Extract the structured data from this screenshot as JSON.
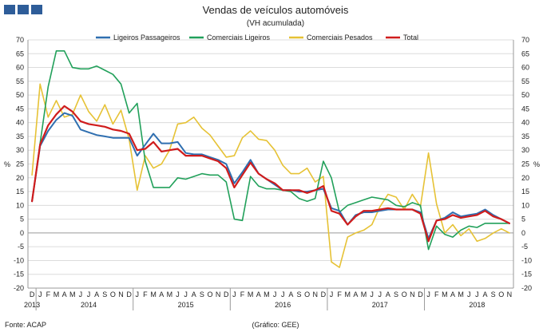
{
  "colors": {
    "brand_box": "#2e5d99",
    "series": [
      "#2f6fb0",
      "#21a05a",
      "#e6c235",
      "#d01c1c"
    ],
    "grid": "#dcdcdc",
    "axis": "#9a9a9a"
  },
  "chart_data": {
    "type": "line",
    "title": "Vendas de veículos automóveis",
    "subtitle": "(VH acumulada)",
    "ylabel_left": "%",
    "ylabel_right": "%",
    "ylim": [
      -20,
      70
    ],
    "ytick_step": 5,
    "grid": true,
    "legend_position": "top",
    "source": "Fonte: ACAP",
    "credit": "(Gráfico: GEE)",
    "month_ticks": [
      "D",
      "J",
      "F",
      "M",
      "A",
      "M",
      "J",
      "J",
      "A",
      "S",
      "O",
      "N",
      "D",
      "J",
      "F",
      "M",
      "A",
      "M",
      "J",
      "J",
      "A",
      "S",
      "O",
      "N",
      "D",
      "J",
      "F",
      "M",
      "A",
      "M",
      "J",
      "J",
      "A",
      "S",
      "O",
      "N",
      "D",
      "J",
      "F",
      "M",
      "A",
      "M",
      "J",
      "J",
      "A",
      "S",
      "O",
      "N",
      "D",
      "J",
      "F",
      "M",
      "A",
      "M",
      "J",
      "J",
      "A",
      "S",
      "O",
      "N"
    ],
    "year_labels": [
      "2013",
      "2014",
      "2015",
      "2016",
      "2017",
      "2018"
    ],
    "x_range": "Dez 2013 – Nov 2018",
    "series": [
      {
        "name": "Ligeiros Passageiros",
        "values": [
          11.5,
          31.5,
          37,
          41,
          43.5,
          42.5,
          37.5,
          36.5,
          35.5,
          35,
          34.5,
          34.5,
          34.5,
          28,
          32,
          36,
          32.5,
          32.5,
          33,
          29,
          28.5,
          28.5,
          27.5,
          26.5,
          25,
          18,
          22,
          26.5,
          21.5,
          19.5,
          17.5,
          15.5,
          15.5,
          15,
          15,
          15.5,
          16,
          9,
          8,
          3,
          6.5,
          7.5,
          7.5,
          8,
          8.5,
          8.5,
          8.5,
          8.5,
          7.5,
          -2,
          4.5,
          5.5,
          7.5,
          6,
          6.5,
          7,
          8.5,
          6.5,
          5,
          3.5
        ]
      },
      {
        "name": "Comerciais Ligeiros",
        "values": [
          11.5,
          32.5,
          53,
          66,
          66,
          60,
          59.5,
          59.5,
          60.5,
          59,
          57.5,
          54,
          43.5,
          47,
          26,
          16.5,
          16.5,
          16.5,
          20,
          19.5,
          20.5,
          21.5,
          21,
          21,
          18.5,
          5,
          4.5,
          20.5,
          17,
          16,
          16,
          15.5,
          15,
          12.5,
          11.5,
          12.5,
          26,
          20,
          7.5,
          10,
          11,
          12,
          13,
          12.5,
          12,
          10,
          9.5,
          11,
          10,
          -6,
          2.5,
          -0.5,
          -1.5,
          1,
          2.5,
          2,
          3.5,
          3.5,
          3.5,
          3.5
        ]
      },
      {
        "name": "Comerciais Pesados",
        "values": [
          21,
          54,
          42,
          48,
          42,
          43,
          50,
          44,
          40.5,
          46.5,
          39.5,
          44.5,
          34,
          15.5,
          28,
          23.5,
          25,
          30,
          39.5,
          40,
          42,
          38,
          35.5,
          31.5,
          27.5,
          28,
          34.5,
          37,
          34,
          33.5,
          30,
          24.5,
          21.5,
          21.5,
          23.5,
          18.5,
          20.5,
          -10.5,
          -12.5,
          -1.5,
          0,
          1,
          3,
          9.5,
          14,
          13,
          8.5,
          14,
          9.5,
          29,
          10.5,
          0,
          3,
          -1,
          1.5,
          -3,
          -2,
          0,
          1.5,
          0
        ]
      },
      {
        "name": "Total",
        "values": [
          11.5,
          32,
          39,
          43,
          46,
          44,
          40.5,
          39.5,
          39,
          38.5,
          37.5,
          37,
          36,
          30,
          30.5,
          33,
          29.5,
          30,
          30.5,
          28,
          28,
          28,
          27,
          26,
          23.5,
          16.5,
          21,
          25.5,
          21.5,
          19.5,
          18,
          15.5,
          15.5,
          15.5,
          14.5,
          15.5,
          17,
          8,
          7,
          3,
          6,
          8,
          8,
          8.5,
          9,
          8.5,
          8.5,
          8.5,
          7,
          -3,
          4.5,
          5,
          6.5,
          5.5,
          6,
          6.5,
          8,
          6,
          5,
          3.5
        ]
      }
    ]
  }
}
